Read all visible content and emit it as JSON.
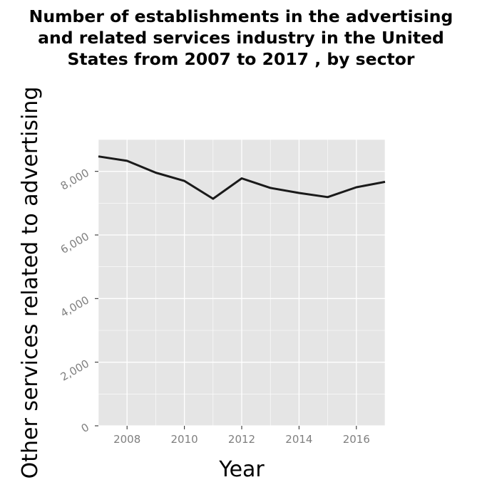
{
  "chart_data": {
    "type": "line",
    "title": "Number of establishments in the advertising\nand related services industry in the United\nStates from 2007 to 2017 , by sector",
    "xlabel": "Year",
    "ylabel": "Other services related to advertising",
    "x": [
      2007,
      2008,
      2009,
      2010,
      2011,
      2012,
      2013,
      2014,
      2015,
      2016,
      2017
    ],
    "series": [
      {
        "values": [
          8470,
          8330,
          7960,
          7700,
          7140,
          7780,
          7480,
          7320,
          7190,
          7500,
          7670
        ]
      }
    ],
    "xlim": [
      2007,
      2017
    ],
    "ylim": [
      0,
      9000
    ],
    "x_ticks": [
      "2008",
      "2010",
      "2012",
      "2014",
      "2016"
    ],
    "y_ticks": [
      "0",
      "2,000",
      "4,000",
      "6,000",
      "8,000"
    ],
    "grid": true,
    "colors": {
      "panel": "#e5e5e5",
      "grid": "#ffffff",
      "line": "#1a1a1a",
      "tick_text": "#7f7f7f"
    }
  }
}
